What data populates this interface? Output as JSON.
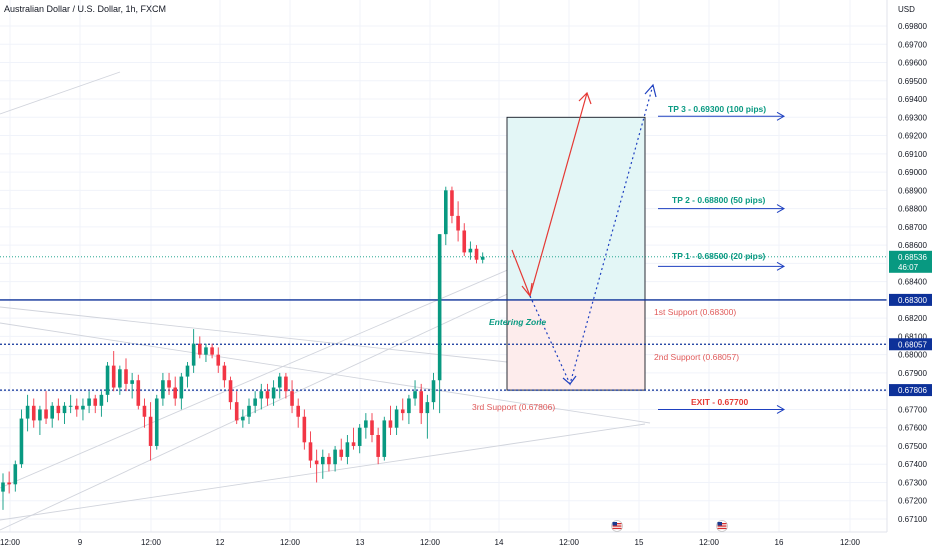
{
  "chart_data": {
    "type": "candlestick",
    "title": "Australian Dollar / U.S. Dollar, 1h, FXCM",
    "currency_label": "USD",
    "ylim": [
      0.6706,
      0.6986
    ],
    "y_ticks": [
      "0.69800",
      "0.69700",
      "0.69600",
      "0.69500",
      "0.69400",
      "0.69300",
      "0.69200",
      "0.69100",
      "0.69000",
      "0.68900",
      "0.68800",
      "0.68700",
      "0.68600",
      "0.68500",
      "0.68400",
      "0.68300",
      "0.68200",
      "0.68100",
      "0.68000",
      "0.67900",
      "0.67800",
      "0.67700",
      "0.67600",
      "0.67500",
      "0.67400",
      "0.67300",
      "0.67200",
      "0.67100"
    ],
    "x_ticks": [
      "12:00",
      "9",
      "12:00",
      "12",
      "12:00",
      "13",
      "12:00",
      "14",
      "12:00",
      "15",
      "12:00",
      "16",
      "12:00"
    ],
    "colors": {
      "up": "#089981",
      "down": "#f23645",
      "support": "#0d3199",
      "price": "#089981",
      "target": "#1e40c0",
      "path": "#e53935",
      "tp_zone": "#e3f6f6",
      "sl_zone": "#fdecec"
    },
    "current_price": {
      "value": "0.68536",
      "countdown": "46:07"
    },
    "price_tags": [
      {
        "value": "0.68300"
      },
      {
        "value": "0.68057"
      },
      {
        "value": "0.67806"
      }
    ],
    "levels": [
      {
        "value": 0.683,
        "style": "solid"
      },
      {
        "value": 0.68057,
        "style": "dotted"
      },
      {
        "value": 0.67806,
        "style": "dotted"
      }
    ],
    "annotations": {
      "tp3": "TP 3 - 0.69300 (100 pips)",
      "tp2": "TP 2 - 0.68800 (50 pips)",
      "tp1": "TP 1 - 0.68500 (20 pips)",
      "exit": "EXIT - 0.67700",
      "support1": "1st Support (0.68300)",
      "support2": "2nd Support (0.68057)",
      "support3": "3rd Support (0.67806)",
      "entering_zone": "Entering Zone"
    },
    "candles": [
      [
        0.6725,
        0.6735,
        0.6715,
        0.673
      ],
      [
        0.673,
        0.6736,
        0.6724,
        0.6729
      ],
      [
        0.6729,
        0.6742,
        0.6725,
        0.674
      ],
      [
        0.674,
        0.677,
        0.6738,
        0.6765
      ],
      [
        0.6765,
        0.6778,
        0.6758,
        0.6772
      ],
      [
        0.6772,
        0.6776,
        0.676,
        0.6764
      ],
      [
        0.6764,
        0.6772,
        0.6756,
        0.677
      ],
      [
        0.677,
        0.678,
        0.6762,
        0.6765
      ],
      [
        0.6765,
        0.6774,
        0.676,
        0.6772
      ],
      [
        0.6772,
        0.6776,
        0.6764,
        0.6768
      ],
      [
        0.6768,
        0.6774,
        0.6762,
        0.6772
      ],
      [
        0.6772,
        0.6778,
        0.6768,
        0.6772
      ],
      [
        0.6772,
        0.6776,
        0.6766,
        0.677
      ],
      [
        0.677,
        0.6776,
        0.6764,
        0.6772
      ],
      [
        0.6772,
        0.678,
        0.6768,
        0.6776
      ],
      [
        0.6776,
        0.6778,
        0.6768,
        0.6772
      ],
      [
        0.6772,
        0.678,
        0.6766,
        0.6778
      ],
      [
        0.6778,
        0.6796,
        0.6774,
        0.6794
      ],
      [
        0.6794,
        0.6802,
        0.678,
        0.6782
      ],
      [
        0.6782,
        0.6794,
        0.6778,
        0.6792
      ],
      [
        0.6792,
        0.6798,
        0.678,
        0.6784
      ],
      [
        0.6784,
        0.679,
        0.6776,
        0.6786
      ],
      [
        0.6786,
        0.6789,
        0.677,
        0.6772
      ],
      [
        0.6772,
        0.6776,
        0.676,
        0.6766
      ],
      [
        0.6766,
        0.6774,
        0.6742,
        0.675
      ],
      [
        0.675,
        0.6778,
        0.6748,
        0.6776
      ],
      [
        0.6776,
        0.679,
        0.6772,
        0.6786
      ],
      [
        0.6786,
        0.679,
        0.6778,
        0.6782
      ],
      [
        0.6782,
        0.6788,
        0.6772,
        0.6776
      ],
      [
        0.6776,
        0.679,
        0.677,
        0.6788
      ],
      [
        0.6788,
        0.6796,
        0.6782,
        0.6794
      ],
      [
        0.6794,
        0.6814,
        0.679,
        0.6806
      ],
      [
        0.6806,
        0.681,
        0.6798,
        0.68
      ],
      [
        0.68,
        0.6806,
        0.6796,
        0.6804
      ],
      [
        0.6804,
        0.6806,
        0.6798,
        0.68
      ],
      [
        0.68,
        0.6804,
        0.679,
        0.6794
      ],
      [
        0.6794,
        0.6796,
        0.6782,
        0.6786
      ],
      [
        0.6786,
        0.6788,
        0.677,
        0.6774
      ],
      [
        0.6774,
        0.678,
        0.6762,
        0.6764
      ],
      [
        0.6764,
        0.677,
        0.676,
        0.6766
      ],
      [
        0.6766,
        0.6776,
        0.6762,
        0.6772
      ],
      [
        0.6772,
        0.678,
        0.6768,
        0.6776
      ],
      [
        0.6776,
        0.6784,
        0.677,
        0.678
      ],
      [
        0.678,
        0.6784,
        0.6772,
        0.6776
      ],
      [
        0.6776,
        0.6786,
        0.6772,
        0.6782
      ],
      [
        0.6782,
        0.679,
        0.6776,
        0.6788
      ],
      [
        0.6788,
        0.679,
        0.6776,
        0.678
      ],
      [
        0.678,
        0.6786,
        0.6768,
        0.6772
      ],
      [
        0.6772,
        0.6776,
        0.676,
        0.6766
      ],
      [
        0.6766,
        0.677,
        0.6748,
        0.6752
      ],
      [
        0.6752,
        0.6758,
        0.6738,
        0.6742
      ],
      [
        0.6742,
        0.6748,
        0.673,
        0.674
      ],
      [
        0.674,
        0.6748,
        0.6732,
        0.6744
      ],
      [
        0.6744,
        0.6746,
        0.6736,
        0.674
      ],
      [
        0.674,
        0.675,
        0.6736,
        0.6748
      ],
      [
        0.6748,
        0.6754,
        0.6742,
        0.6744
      ],
      [
        0.6744,
        0.6756,
        0.674,
        0.6752
      ],
      [
        0.6752,
        0.676,
        0.6748,
        0.675
      ],
      [
        0.675,
        0.6762,
        0.6746,
        0.676
      ],
      [
        0.676,
        0.6768,
        0.6754,
        0.6764
      ],
      [
        0.6764,
        0.6768,
        0.6752,
        0.6756
      ],
      [
        0.6756,
        0.676,
        0.674,
        0.6744
      ],
      [
        0.6744,
        0.6766,
        0.6742,
        0.6764
      ],
      [
        0.6764,
        0.6772,
        0.6756,
        0.676
      ],
      [
        0.676,
        0.6772,
        0.6756,
        0.677
      ],
      [
        0.677,
        0.6776,
        0.6764,
        0.6768
      ],
      [
        0.6768,
        0.6778,
        0.6762,
        0.6776
      ],
      [
        0.6776,
        0.6786,
        0.6772,
        0.678
      ],
      [
        0.678,
        0.6784,
        0.6762,
        0.6768
      ],
      [
        0.6768,
        0.6778,
        0.6754,
        0.6774
      ],
      [
        0.6774,
        0.679,
        0.677,
        0.6786
      ],
      [
        0.6786,
        0.6866,
        0.6768,
        0.6866
      ],
      [
        0.6866,
        0.6892,
        0.686,
        0.689
      ],
      [
        0.689,
        0.6892,
        0.6872,
        0.6876
      ],
      [
        0.6876,
        0.6884,
        0.6862,
        0.6868
      ],
      [
        0.6868,
        0.6872,
        0.6854,
        0.6856
      ],
      [
        0.6856,
        0.6862,
        0.6852,
        0.6858
      ],
      [
        0.6858,
        0.686,
        0.685,
        0.6852
      ],
      [
        0.6852,
        0.6856,
        0.685,
        0.68536
      ]
    ]
  }
}
